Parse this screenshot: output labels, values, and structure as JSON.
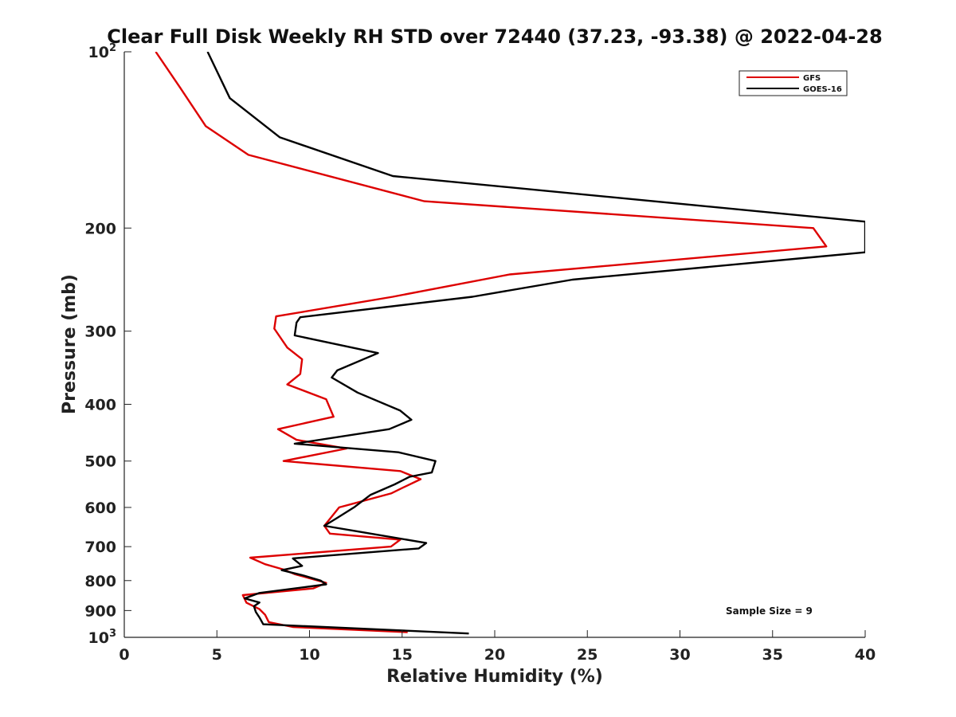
{
  "chart_data": {
    "type": "line",
    "title": "Clear Full Disk Weekly RH STD over 72440 (37.23, -93.38) @ 2022-04-28",
    "xlabel": "Relative Humidity (%)",
    "ylabel": "Pressure (mb)",
    "xlim": [
      0,
      40
    ],
    "ylim": [
      100,
      1000
    ],
    "yscale": "log",
    "y_reversed": true,
    "grid": false,
    "x_ticks": [
      0,
      5,
      10,
      15,
      20,
      25,
      30,
      35,
      40
    ],
    "x_tick_labels": [
      "0",
      "5",
      "10",
      "15",
      "20",
      "25",
      "30",
      "35",
      "40"
    ],
    "y_ticks": [
      100,
      200,
      300,
      400,
      500,
      600,
      700,
      800,
      900,
      1000
    ],
    "y_tick_labels": [
      {
        "base": "10",
        "sup": "2"
      },
      {
        "base": "200",
        "sup": ""
      },
      {
        "base": "300",
        "sup": ""
      },
      {
        "base": "400",
        "sup": ""
      },
      {
        "base": "500",
        "sup": ""
      },
      {
        "base": "600",
        "sup": ""
      },
      {
        "base": "700",
        "sup": ""
      },
      {
        "base": "800",
        "sup": ""
      },
      {
        "base": "900",
        "sup": ""
      },
      {
        "base": "10",
        "sup": "3"
      }
    ],
    "legend_position": "top-right",
    "annotation": "Sample Size = 9",
    "series": [
      {
        "name": "GFS",
        "color": "#dd0000",
        "points": [
          [
            1.7,
            100
          ],
          [
            3.0,
            115
          ],
          [
            4.4,
            134
          ],
          [
            6.7,
            150
          ],
          [
            16.2,
            180
          ],
          [
            37.2,
            200
          ],
          [
            37.9,
            215
          ],
          [
            20.8,
            240
          ],
          [
            14.5,
            262
          ],
          [
            8.2,
            283
          ],
          [
            8.1,
            297
          ],
          [
            8.8,
            320
          ],
          [
            9.6,
            335
          ],
          [
            9.5,
            355
          ],
          [
            8.8,
            370
          ],
          [
            10.9,
            392
          ],
          [
            11.3,
            420
          ],
          [
            8.3,
            441
          ],
          [
            9.3,
            460
          ],
          [
            12.0,
            476
          ],
          [
            8.6,
            500
          ],
          [
            14.9,
            520
          ],
          [
            16.0,
            537
          ],
          [
            15.0,
            556
          ],
          [
            14.4,
            568
          ],
          [
            11.6,
            600
          ],
          [
            10.8,
            645
          ],
          [
            11.1,
            665
          ],
          [
            14.9,
            681
          ],
          [
            14.4,
            700
          ],
          [
            6.8,
            731
          ],
          [
            7.6,
            750
          ],
          [
            8.6,
            766
          ],
          [
            9.2,
            780
          ],
          [
            10.9,
            807
          ],
          [
            10.2,
            825
          ],
          [
            6.4,
            847
          ],
          [
            6.6,
            873
          ],
          [
            7.3,
            895
          ],
          [
            7.6,
            915
          ],
          [
            7.8,
            942
          ],
          [
            9.1,
            960
          ],
          [
            15.3,
            980
          ]
        ]
      },
      {
        "name": "GOES-16",
        "color": "#000000",
        "points": [
          [
            4.5,
            100
          ],
          [
            5.7,
            120
          ],
          [
            8.4,
            140
          ],
          [
            14.5,
            163
          ],
          [
            40.0,
            195
          ],
          [
            40.0,
            220
          ],
          [
            24.2,
            245
          ],
          [
            18.8,
            262
          ],
          [
            9.5,
            284
          ],
          [
            9.3,
            290
          ],
          [
            9.2,
            305
          ],
          [
            13.7,
            327
          ],
          [
            11.5,
            350
          ],
          [
            11.2,
            360
          ],
          [
            12.6,
            382
          ],
          [
            14.9,
            410
          ],
          [
            15.5,
            425
          ],
          [
            14.3,
            441
          ],
          [
            9.2,
            467
          ],
          [
            14.8,
            483
          ],
          [
            16.8,
            500
          ],
          [
            16.6,
            523
          ],
          [
            15.4,
            532
          ],
          [
            14.6,
            548
          ],
          [
            13.3,
            571
          ],
          [
            12.4,
            600
          ],
          [
            11.5,
            625
          ],
          [
            10.8,
            645
          ],
          [
            12.7,
            660
          ],
          [
            16.3,
            690
          ],
          [
            15.9,
            705
          ],
          [
            9.1,
            733
          ],
          [
            9.6,
            755
          ],
          [
            8.5,
            768
          ],
          [
            9.6,
            783
          ],
          [
            10.6,
            800
          ],
          [
            10.9,
            812
          ],
          [
            7.3,
            840
          ],
          [
            6.5,
            858
          ],
          [
            7.3,
            872
          ],
          [
            7.0,
            885
          ],
          [
            7.1,
            905
          ],
          [
            7.3,
            925
          ],
          [
            7.5,
            950
          ],
          [
            18.6,
            985
          ]
        ]
      }
    ]
  }
}
